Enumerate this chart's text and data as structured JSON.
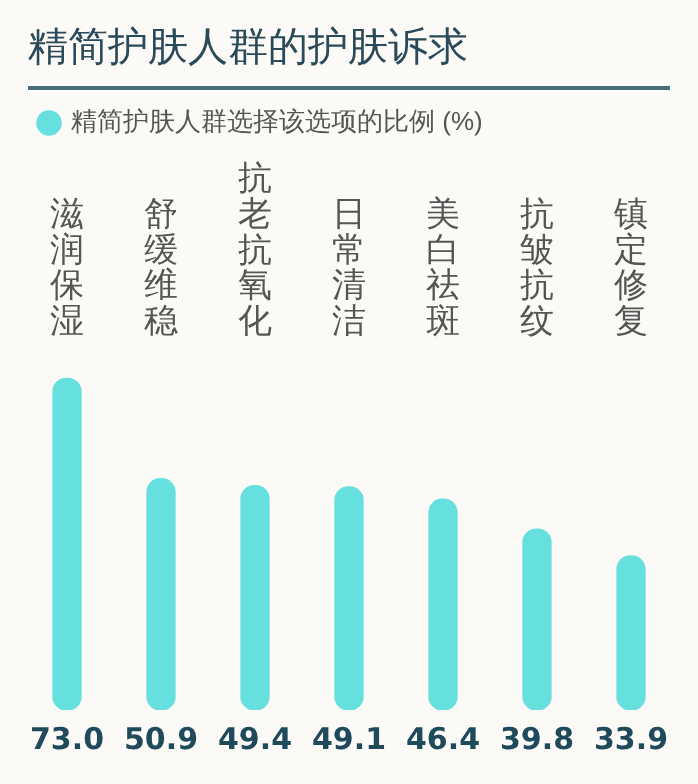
{
  "chart_data": {
    "type": "bar",
    "title": "精简护肤人群的护肤诉求",
    "categories": [
      "滋润保湿",
      "舒缓维稳",
      "抗老抗氧化",
      "日常清洁",
      "美白祛斑",
      "抗皱抗纹",
      "镇定修复"
    ],
    "series": [
      {
        "name": "精简护肤人群选择该选项的比例 (%)",
        "color": "#66dfdf",
        "values": [
          73.0,
          50.9,
          49.4,
          49.1,
          46.4,
          39.8,
          33.9
        ],
        "value_labels": [
          "73.0",
          "50.9",
          "49.4",
          "49.1",
          "46.4",
          "39.8",
          "33.9"
        ]
      }
    ],
    "legend": "top left",
    "grid": false,
    "tick_labels": "x"
  }
}
